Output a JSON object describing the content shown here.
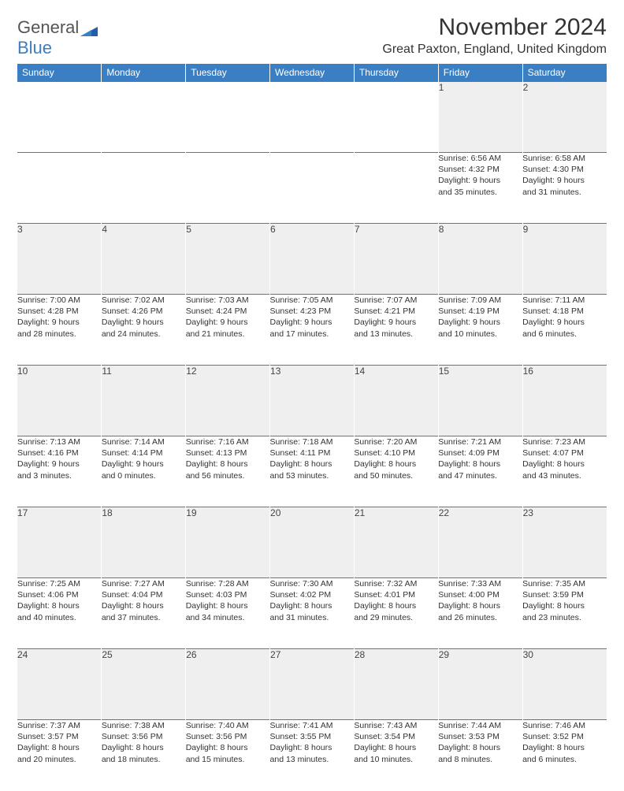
{
  "brand": {
    "part1": "General",
    "part2": "Blue"
  },
  "title": "November 2024",
  "location": "Great Paxton, England, United Kingdom",
  "colors": {
    "header_bg": "#3a7fc4",
    "header_text": "#ffffff",
    "daynum_bg": "#efefef",
    "rule": "#3a7fc4",
    "text": "#333333"
  },
  "day_headers": [
    "Sunday",
    "Monday",
    "Tuesday",
    "Wednesday",
    "Thursday",
    "Friday",
    "Saturday"
  ],
  "weeks": [
    [
      null,
      null,
      null,
      null,
      null,
      {
        "n": "1",
        "sr": "Sunrise: 6:56 AM",
        "ss": "Sunset: 4:32 PM",
        "d1": "Daylight: 9 hours",
        "d2": "and 35 minutes."
      },
      {
        "n": "2",
        "sr": "Sunrise: 6:58 AM",
        "ss": "Sunset: 4:30 PM",
        "d1": "Daylight: 9 hours",
        "d2": "and 31 minutes."
      }
    ],
    [
      {
        "n": "3",
        "sr": "Sunrise: 7:00 AM",
        "ss": "Sunset: 4:28 PM",
        "d1": "Daylight: 9 hours",
        "d2": "and 28 minutes."
      },
      {
        "n": "4",
        "sr": "Sunrise: 7:02 AM",
        "ss": "Sunset: 4:26 PM",
        "d1": "Daylight: 9 hours",
        "d2": "and 24 minutes."
      },
      {
        "n": "5",
        "sr": "Sunrise: 7:03 AM",
        "ss": "Sunset: 4:24 PM",
        "d1": "Daylight: 9 hours",
        "d2": "and 21 minutes."
      },
      {
        "n": "6",
        "sr": "Sunrise: 7:05 AM",
        "ss": "Sunset: 4:23 PM",
        "d1": "Daylight: 9 hours",
        "d2": "and 17 minutes."
      },
      {
        "n": "7",
        "sr": "Sunrise: 7:07 AM",
        "ss": "Sunset: 4:21 PM",
        "d1": "Daylight: 9 hours",
        "d2": "and 13 minutes."
      },
      {
        "n": "8",
        "sr": "Sunrise: 7:09 AM",
        "ss": "Sunset: 4:19 PM",
        "d1": "Daylight: 9 hours",
        "d2": "and 10 minutes."
      },
      {
        "n": "9",
        "sr": "Sunrise: 7:11 AM",
        "ss": "Sunset: 4:18 PM",
        "d1": "Daylight: 9 hours",
        "d2": "and 6 minutes."
      }
    ],
    [
      {
        "n": "10",
        "sr": "Sunrise: 7:13 AM",
        "ss": "Sunset: 4:16 PM",
        "d1": "Daylight: 9 hours",
        "d2": "and 3 minutes."
      },
      {
        "n": "11",
        "sr": "Sunrise: 7:14 AM",
        "ss": "Sunset: 4:14 PM",
        "d1": "Daylight: 9 hours",
        "d2": "and 0 minutes."
      },
      {
        "n": "12",
        "sr": "Sunrise: 7:16 AM",
        "ss": "Sunset: 4:13 PM",
        "d1": "Daylight: 8 hours",
        "d2": "and 56 minutes."
      },
      {
        "n": "13",
        "sr": "Sunrise: 7:18 AM",
        "ss": "Sunset: 4:11 PM",
        "d1": "Daylight: 8 hours",
        "d2": "and 53 minutes."
      },
      {
        "n": "14",
        "sr": "Sunrise: 7:20 AM",
        "ss": "Sunset: 4:10 PM",
        "d1": "Daylight: 8 hours",
        "d2": "and 50 minutes."
      },
      {
        "n": "15",
        "sr": "Sunrise: 7:21 AM",
        "ss": "Sunset: 4:09 PM",
        "d1": "Daylight: 8 hours",
        "d2": "and 47 minutes."
      },
      {
        "n": "16",
        "sr": "Sunrise: 7:23 AM",
        "ss": "Sunset: 4:07 PM",
        "d1": "Daylight: 8 hours",
        "d2": "and 43 minutes."
      }
    ],
    [
      {
        "n": "17",
        "sr": "Sunrise: 7:25 AM",
        "ss": "Sunset: 4:06 PM",
        "d1": "Daylight: 8 hours",
        "d2": "and 40 minutes."
      },
      {
        "n": "18",
        "sr": "Sunrise: 7:27 AM",
        "ss": "Sunset: 4:04 PM",
        "d1": "Daylight: 8 hours",
        "d2": "and 37 minutes."
      },
      {
        "n": "19",
        "sr": "Sunrise: 7:28 AM",
        "ss": "Sunset: 4:03 PM",
        "d1": "Daylight: 8 hours",
        "d2": "and 34 minutes."
      },
      {
        "n": "20",
        "sr": "Sunrise: 7:30 AM",
        "ss": "Sunset: 4:02 PM",
        "d1": "Daylight: 8 hours",
        "d2": "and 31 minutes."
      },
      {
        "n": "21",
        "sr": "Sunrise: 7:32 AM",
        "ss": "Sunset: 4:01 PM",
        "d1": "Daylight: 8 hours",
        "d2": "and 29 minutes."
      },
      {
        "n": "22",
        "sr": "Sunrise: 7:33 AM",
        "ss": "Sunset: 4:00 PM",
        "d1": "Daylight: 8 hours",
        "d2": "and 26 minutes."
      },
      {
        "n": "23",
        "sr": "Sunrise: 7:35 AM",
        "ss": "Sunset: 3:59 PM",
        "d1": "Daylight: 8 hours",
        "d2": "and 23 minutes."
      }
    ],
    [
      {
        "n": "24",
        "sr": "Sunrise: 7:37 AM",
        "ss": "Sunset: 3:57 PM",
        "d1": "Daylight: 8 hours",
        "d2": "and 20 minutes."
      },
      {
        "n": "25",
        "sr": "Sunrise: 7:38 AM",
        "ss": "Sunset: 3:56 PM",
        "d1": "Daylight: 8 hours",
        "d2": "and 18 minutes."
      },
      {
        "n": "26",
        "sr": "Sunrise: 7:40 AM",
        "ss": "Sunset: 3:56 PM",
        "d1": "Daylight: 8 hours",
        "d2": "and 15 minutes."
      },
      {
        "n": "27",
        "sr": "Sunrise: 7:41 AM",
        "ss": "Sunset: 3:55 PM",
        "d1": "Daylight: 8 hours",
        "d2": "and 13 minutes."
      },
      {
        "n": "28",
        "sr": "Sunrise: 7:43 AM",
        "ss": "Sunset: 3:54 PM",
        "d1": "Daylight: 8 hours",
        "d2": "and 10 minutes."
      },
      {
        "n": "29",
        "sr": "Sunrise: 7:44 AM",
        "ss": "Sunset: 3:53 PM",
        "d1": "Daylight: 8 hours",
        "d2": "and 8 minutes."
      },
      {
        "n": "30",
        "sr": "Sunrise: 7:46 AM",
        "ss": "Sunset: 3:52 PM",
        "d1": "Daylight: 8 hours",
        "d2": "and 6 minutes."
      }
    ]
  ]
}
